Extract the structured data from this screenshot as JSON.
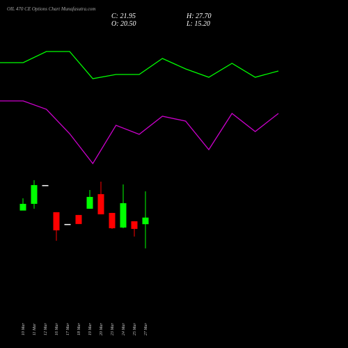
{
  "chart_data": [
    {
      "type": "line",
      "x": [
        0,
        1,
        2,
        3,
        4,
        5,
        6,
        7,
        8,
        9,
        10,
        11,
        12
      ],
      "xlim": [
        0,
        12
      ],
      "ylim": [
        0,
        100
      ],
      "series": [
        {
          "color": "#00ff00",
          "values": [
            64,
            64,
            70.4,
            70.4,
            54.8,
            57.2,
            57.2,
            66.4,
            60.4,
            55.6,
            63.6,
            55.6,
            59.2
          ]
        },
        {
          "color": "#cc00cc",
          "values": [
            42,
            42,
            37.2,
            23.2,
            6,
            28,
            22.8,
            33.2,
            30.4,
            14,
            34.8,
            24.4,
            34.8
          ]
        }
      ]
    },
    {
      "type": "candlestick",
      "title": "OIL 470 CE Options Chart Munafasutra.com",
      "annotations": [
        "C: 21.95",
        "H: 27.70",
        "O: 20.50",
        "L: 15.20"
      ],
      "categories": [
        "10 Mar",
        "11 Mar",
        "12 Mar",
        "16 Mar",
        "17 Mar",
        "18 Mar",
        "19 Mar",
        "20 Mar",
        "23 Mar",
        "24 Mar",
        "25 Mar",
        "27 Mar"
      ],
      "open": [
        23.49,
        24.96,
        29.07,
        23.13,
        20.54,
        22.52,
        23.89,
        27.09,
        22.97,
        19.77,
        21.15,
        20.5
      ],
      "high": [
        26.18,
        30.14,
        29.07,
        23.13,
        20.54,
        22.52,
        28.0,
        29.83,
        22.97,
        29.22,
        21.15,
        27.7
      ],
      "low": [
        23.49,
        23.89,
        29.07,
        16.88,
        20.54,
        20.54,
        23.89,
        22.67,
        19.47,
        19.62,
        17.79,
        15.2
      ],
      "close": [
        24.96,
        29.07,
        29.07,
        19.16,
        20.54,
        20.54,
        26.48,
        22.67,
        19.62,
        25.11,
        19.47,
        21.95
      ],
      "ylim": [
        13.2,
        31.5
      ],
      "up_color": "#00ff00",
      "down_color": "#ff0000",
      "flat_color": "#ffffff"
    }
  ]
}
